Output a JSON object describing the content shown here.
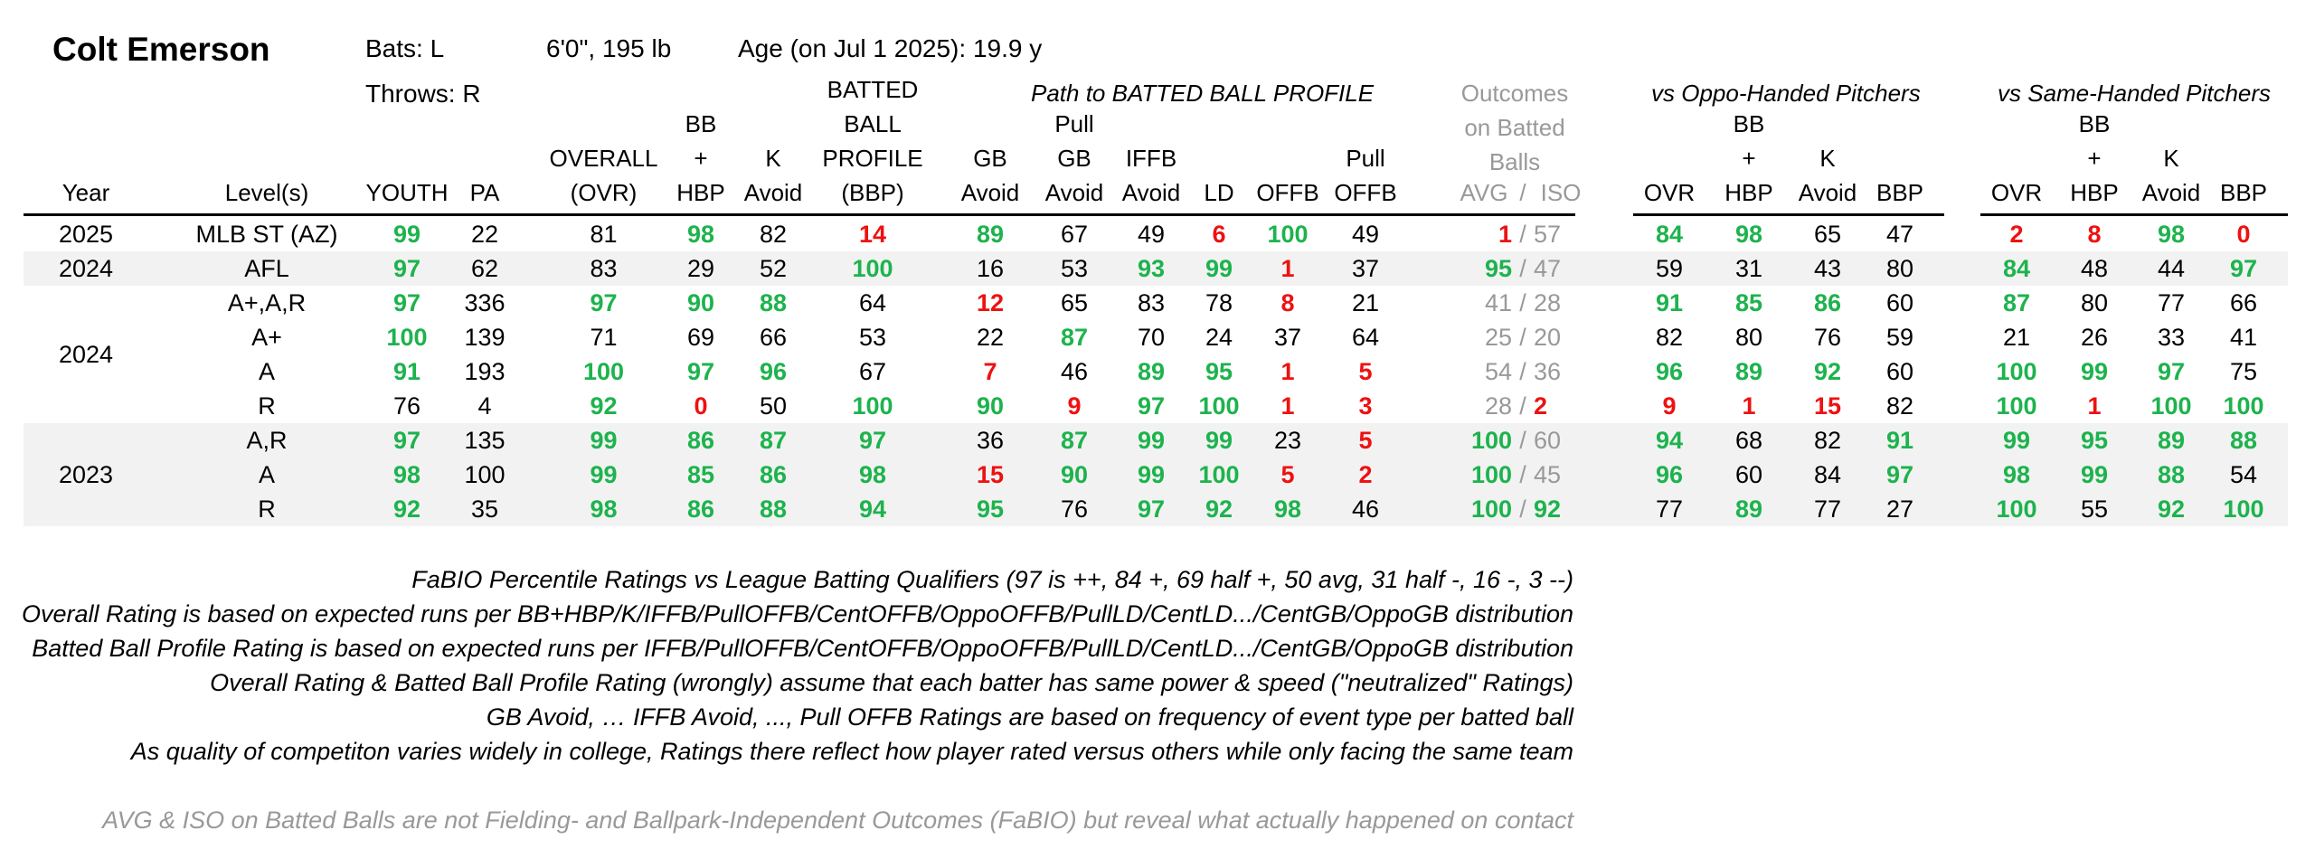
{
  "player": {
    "name": "Colt Emerson",
    "bats": "Bats: L",
    "throws": "Throws: R",
    "size": "6'0\", 195 lb",
    "age": "Age (on Jul 1 2025): 19.9 y"
  },
  "group_headers": {
    "path": "Path to BATTED BALL PROFILE",
    "outcomes": [
      "Outcomes",
      "on Batted",
      "Balls"
    ],
    "oppo": "vs Oppo-Handed Pitchers",
    "same": "vs Same-Handed Pitchers"
  },
  "columns": {
    "year": "Year",
    "levels": "Level(s)",
    "youth": "YOUTH",
    "pa": "PA",
    "overall": [
      "OVERALL",
      "(OVR)"
    ],
    "bbhbp": [
      "BB",
      "+",
      "HBP"
    ],
    "kavoid": [
      "K",
      "Avoid"
    ],
    "bbp": [
      "BATTED",
      "BALL",
      "PROFILE",
      "(BBP)"
    ],
    "gbavoid": [
      "GB",
      "Avoid"
    ],
    "pullgb": [
      "Pull",
      "GB",
      "Avoid"
    ],
    "iffb": [
      "IFFB",
      "Avoid"
    ],
    "ld": "LD",
    "offb": "OFFB",
    "pulloffb": [
      "Pull",
      "OFFB"
    ],
    "avg": "AVG",
    "slash": "/",
    "iso": "ISO",
    "ovr": "OVR",
    "hbp": "HBP",
    "bbp_short": "BBP"
  },
  "colors": {
    "green": "#1db34d",
    "red": "#ee1111",
    "gray": "#999999",
    "stripe": "#f2f2f2"
  },
  "years": [
    "2025",
    "2024",
    "2024",
    "2023"
  ],
  "rows": [
    {
      "level": "MLB ST (AZ)",
      "youth": [
        "99",
        "g"
      ],
      "pa": [
        "22",
        "n"
      ],
      "ovr": [
        "81",
        "n"
      ],
      "bb": [
        "98",
        "g"
      ],
      "k": [
        "82",
        "n"
      ],
      "bbp": [
        "14",
        "r"
      ],
      "gb": [
        "89",
        "g"
      ],
      "pgb": [
        "67",
        "n"
      ],
      "iffb": [
        "49",
        "n"
      ],
      "ld": [
        "6",
        "r"
      ],
      "offb": [
        "100",
        "g"
      ],
      "poffb": [
        "49",
        "n"
      ],
      "avg": [
        "1",
        "r"
      ],
      "iso": [
        "57",
        "gy"
      ],
      "o_ovr": [
        "84",
        "g"
      ],
      "o_bb": [
        "98",
        "g"
      ],
      "o_k": [
        "65",
        "n"
      ],
      "o_bbp": [
        "47",
        "n"
      ],
      "s_ovr": [
        "2",
        "r"
      ],
      "s_bb": [
        "8",
        "r"
      ],
      "s_k": [
        "98",
        "g"
      ],
      "s_bbp": [
        "0",
        "r"
      ]
    },
    {
      "level": "AFL",
      "youth": [
        "97",
        "g"
      ],
      "pa": [
        "62",
        "n"
      ],
      "ovr": [
        "83",
        "n"
      ],
      "bb": [
        "29",
        "n"
      ],
      "k": [
        "52",
        "n"
      ],
      "bbp": [
        "100",
        "g"
      ],
      "gb": [
        "16",
        "n"
      ],
      "pgb": [
        "53",
        "n"
      ],
      "iffb": [
        "93",
        "g"
      ],
      "ld": [
        "99",
        "g"
      ],
      "offb": [
        "1",
        "r"
      ],
      "poffb": [
        "37",
        "n"
      ],
      "avg": [
        "95",
        "g"
      ],
      "iso": [
        "47",
        "gy"
      ],
      "o_ovr": [
        "59",
        "n"
      ],
      "o_bb": [
        "31",
        "n"
      ],
      "o_k": [
        "43",
        "n"
      ],
      "o_bbp": [
        "80",
        "n"
      ],
      "s_ovr": [
        "84",
        "g"
      ],
      "s_bb": [
        "48",
        "n"
      ],
      "s_k": [
        "44",
        "n"
      ],
      "s_bbp": [
        "97",
        "g"
      ]
    },
    {
      "level": "A+,A,R",
      "youth": [
        "97",
        "g"
      ],
      "pa": [
        "336",
        "n"
      ],
      "ovr": [
        "97",
        "g"
      ],
      "bb": [
        "90",
        "g"
      ],
      "k": [
        "88",
        "g"
      ],
      "bbp": [
        "64",
        "n"
      ],
      "gb": [
        "12",
        "r"
      ],
      "pgb": [
        "65",
        "n"
      ],
      "iffb": [
        "83",
        "n"
      ],
      "ld": [
        "78",
        "n"
      ],
      "offb": [
        "8",
        "r"
      ],
      "poffb": [
        "21",
        "n"
      ],
      "avg": [
        "41",
        "gy"
      ],
      "iso": [
        "28",
        "gy"
      ],
      "o_ovr": [
        "91",
        "g"
      ],
      "o_bb": [
        "85",
        "g"
      ],
      "o_k": [
        "86",
        "g"
      ],
      "o_bbp": [
        "60",
        "n"
      ],
      "s_ovr": [
        "87",
        "g"
      ],
      "s_bb": [
        "80",
        "n"
      ],
      "s_k": [
        "77",
        "n"
      ],
      "s_bbp": [
        "66",
        "n"
      ]
    },
    {
      "level": "A+",
      "youth": [
        "100",
        "g"
      ],
      "pa": [
        "139",
        "n"
      ],
      "ovr": [
        "71",
        "n"
      ],
      "bb": [
        "69",
        "n"
      ],
      "k": [
        "66",
        "n"
      ],
      "bbp": [
        "53",
        "n"
      ],
      "gb": [
        "22",
        "n"
      ],
      "pgb": [
        "87",
        "g"
      ],
      "iffb": [
        "70",
        "n"
      ],
      "ld": [
        "24",
        "n"
      ],
      "offb": [
        "37",
        "n"
      ],
      "poffb": [
        "64",
        "n"
      ],
      "avg": [
        "25",
        "gy"
      ],
      "iso": [
        "20",
        "gy"
      ],
      "o_ovr": [
        "82",
        "n"
      ],
      "o_bb": [
        "80",
        "n"
      ],
      "o_k": [
        "76",
        "n"
      ],
      "o_bbp": [
        "59",
        "n"
      ],
      "s_ovr": [
        "21",
        "n"
      ],
      "s_bb": [
        "26",
        "n"
      ],
      "s_k": [
        "33",
        "n"
      ],
      "s_bbp": [
        "41",
        "n"
      ]
    },
    {
      "level": "A",
      "youth": [
        "91",
        "g"
      ],
      "pa": [
        "193",
        "n"
      ],
      "ovr": [
        "100",
        "g"
      ],
      "bb": [
        "97",
        "g"
      ],
      "k": [
        "96",
        "g"
      ],
      "bbp": [
        "67",
        "n"
      ],
      "gb": [
        "7",
        "r"
      ],
      "pgb": [
        "46",
        "n"
      ],
      "iffb": [
        "89",
        "g"
      ],
      "ld": [
        "95",
        "g"
      ],
      "offb": [
        "1",
        "r"
      ],
      "poffb": [
        "5",
        "r"
      ],
      "avg": [
        "54",
        "gy"
      ],
      "iso": [
        "36",
        "gy"
      ],
      "o_ovr": [
        "96",
        "g"
      ],
      "o_bb": [
        "89",
        "g"
      ],
      "o_k": [
        "92",
        "g"
      ],
      "o_bbp": [
        "60",
        "n"
      ],
      "s_ovr": [
        "100",
        "g"
      ],
      "s_bb": [
        "99",
        "g"
      ],
      "s_k": [
        "97",
        "g"
      ],
      "s_bbp": [
        "75",
        "n"
      ]
    },
    {
      "level": "R",
      "youth": [
        "76",
        "n"
      ],
      "pa": [
        "4",
        "n"
      ],
      "ovr": [
        "92",
        "g"
      ],
      "bb": [
        "0",
        "r"
      ],
      "k": [
        "50",
        "n"
      ],
      "bbp": [
        "100",
        "g"
      ],
      "gb": [
        "90",
        "g"
      ],
      "pgb": [
        "9",
        "r"
      ],
      "iffb": [
        "97",
        "g"
      ],
      "ld": [
        "100",
        "g"
      ],
      "offb": [
        "1",
        "r"
      ],
      "poffb": [
        "3",
        "r"
      ],
      "avg": [
        "28",
        "gy"
      ],
      "iso": [
        "2",
        "r"
      ],
      "o_ovr": [
        "9",
        "r"
      ],
      "o_bb": [
        "1",
        "r"
      ],
      "o_k": [
        "15",
        "r"
      ],
      "o_bbp": [
        "82",
        "n"
      ],
      "s_ovr": [
        "100",
        "g"
      ],
      "s_bb": [
        "1",
        "r"
      ],
      "s_k": [
        "100",
        "g"
      ],
      "s_bbp": [
        "100",
        "g"
      ]
    },
    {
      "level": "A,R",
      "youth": [
        "97",
        "g"
      ],
      "pa": [
        "135",
        "n"
      ],
      "ovr": [
        "99",
        "g"
      ],
      "bb": [
        "86",
        "g"
      ],
      "k": [
        "87",
        "g"
      ],
      "bbp": [
        "97",
        "g"
      ],
      "gb": [
        "36",
        "n"
      ],
      "pgb": [
        "87",
        "g"
      ],
      "iffb": [
        "99",
        "g"
      ],
      "ld": [
        "99",
        "g"
      ],
      "offb": [
        "23",
        "n"
      ],
      "poffb": [
        "5",
        "r"
      ],
      "avg": [
        "100",
        "g"
      ],
      "iso": [
        "60",
        "gy"
      ],
      "o_ovr": [
        "94",
        "g"
      ],
      "o_bb": [
        "68",
        "n"
      ],
      "o_k": [
        "82",
        "n"
      ],
      "o_bbp": [
        "91",
        "g"
      ],
      "s_ovr": [
        "99",
        "g"
      ],
      "s_bb": [
        "95",
        "g"
      ],
      "s_k": [
        "89",
        "g"
      ],
      "s_bbp": [
        "88",
        "g"
      ]
    },
    {
      "level": "A",
      "youth": [
        "98",
        "g"
      ],
      "pa": [
        "100",
        "n"
      ],
      "ovr": [
        "99",
        "g"
      ],
      "bb": [
        "85",
        "g"
      ],
      "k": [
        "86",
        "g"
      ],
      "bbp": [
        "98",
        "g"
      ],
      "gb": [
        "15",
        "r"
      ],
      "pgb": [
        "90",
        "g"
      ],
      "iffb": [
        "99",
        "g"
      ],
      "ld": [
        "100",
        "g"
      ],
      "offb": [
        "5",
        "r"
      ],
      "poffb": [
        "2",
        "r"
      ],
      "avg": [
        "100",
        "g"
      ],
      "iso": [
        "45",
        "gy"
      ],
      "o_ovr": [
        "96",
        "g"
      ],
      "o_bb": [
        "60",
        "n"
      ],
      "o_k": [
        "84",
        "n"
      ],
      "o_bbp": [
        "97",
        "g"
      ],
      "s_ovr": [
        "98",
        "g"
      ],
      "s_bb": [
        "99",
        "g"
      ],
      "s_k": [
        "88",
        "g"
      ],
      "s_bbp": [
        "54",
        "n"
      ]
    },
    {
      "level": "R",
      "youth": [
        "92",
        "g"
      ],
      "pa": [
        "35",
        "n"
      ],
      "ovr": [
        "98",
        "g"
      ],
      "bb": [
        "86",
        "g"
      ],
      "k": [
        "88",
        "g"
      ],
      "bbp": [
        "94",
        "g"
      ],
      "gb": [
        "95",
        "g"
      ],
      "pgb": [
        "76",
        "n"
      ],
      "iffb": [
        "97",
        "g"
      ],
      "ld": [
        "92",
        "g"
      ],
      "offb": [
        "98",
        "g"
      ],
      "poffb": [
        "46",
        "n"
      ],
      "avg": [
        "100",
        "g"
      ],
      "iso": [
        "92",
        "g"
      ],
      "o_ovr": [
        "77",
        "n"
      ],
      "o_bb": [
        "89",
        "g"
      ],
      "o_k": [
        "77",
        "n"
      ],
      "o_bbp": [
        "27",
        "n"
      ],
      "s_ovr": [
        "100",
        "g"
      ],
      "s_bb": [
        "55",
        "n"
      ],
      "s_k": [
        "92",
        "g"
      ],
      "s_bbp": [
        "100",
        "g"
      ]
    }
  ],
  "notes": [
    "FaBIO Percentile Ratings vs League Batting Qualifiers (97 is ++, 84 +, 69 half +, 50 avg, 31 half -, 16 -, 3 --)",
    "Overall Rating is based on expected runs per BB+HBP/K/IFFB/PullOFFB/CentOFFB/OppoOFFB/PullLD/CentLD.../CentGB/OppoGB distribution",
    "Batted Ball Profile Rating is based on expected runs per IFFB/PullOFFB/CentOFFB/OppoOFFB/PullLD/CentLD.../CentGB/OppoGB distribution",
    "Overall Rating & Batted Ball Profile Rating (wrongly) assume that each batter has same power & speed (\"neutralized\" Ratings)",
    "GB Avoid, … IFFB Avoid, ..., Pull OFFB Ratings are based on frequency of event type per batted ball",
    "As quality of competiton varies widely in college, Ratings there reflect how player rated versus others while only facing the same team"
  ],
  "footnote": "AVG & ISO on Batted Balls are not Fielding- and Ballpark-Independent Outcomes (FaBIO) but reveal what actually happened on contact"
}
